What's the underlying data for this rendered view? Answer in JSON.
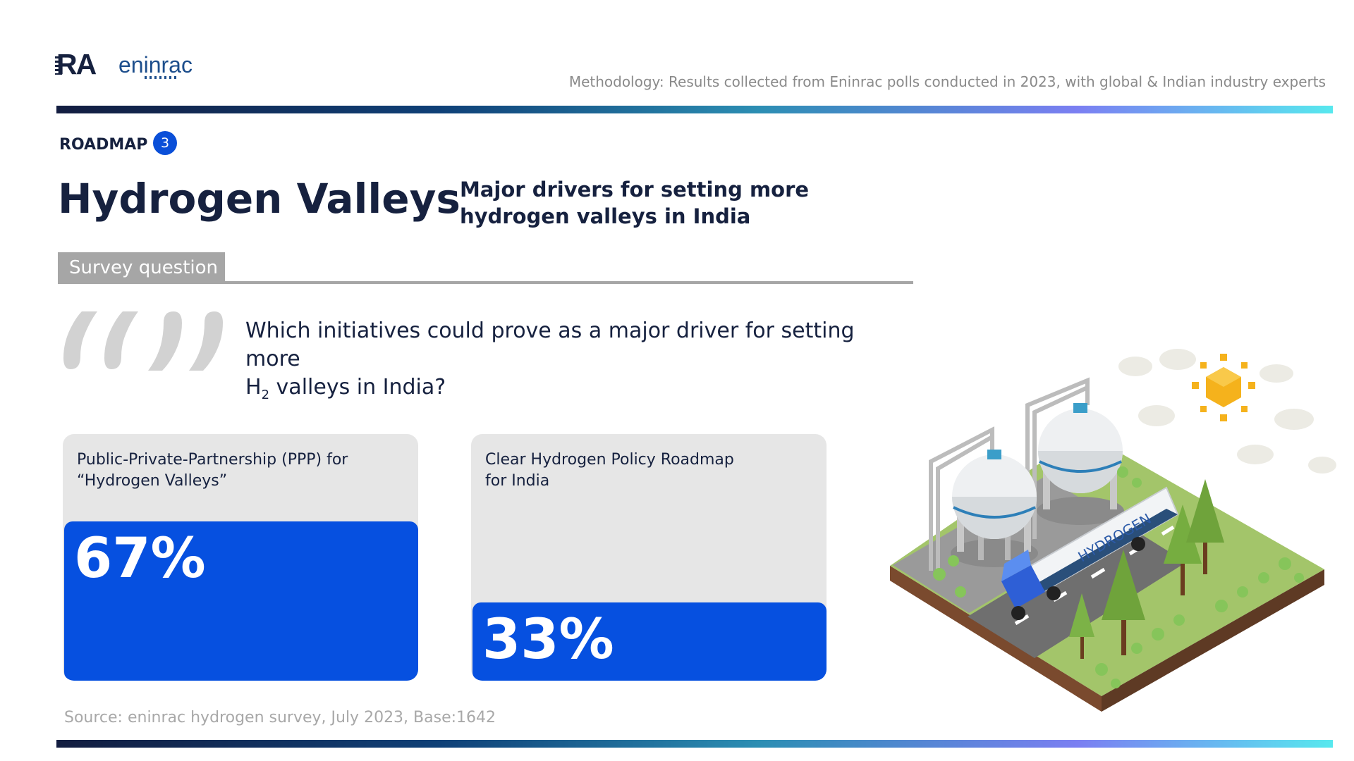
{
  "header": {
    "logo_text_ra": "RA",
    "logo_text_brand": "eninrac",
    "methodology": "Methodology: Results collected from Eninrac polls conducted in 2023, with global & Indian industry experts"
  },
  "section": {
    "label": "ROADMAP",
    "number": "3"
  },
  "title": "Hydrogen Valleys",
  "subtitle": "Major drivers for setting more hydrogen valleys in India",
  "survey_tab": "Survey question",
  "question_line1": "Which initiatives could prove as a major driver for setting more",
  "question_h": "H",
  "question_sub": "2",
  "question_rest": " valleys in India?",
  "illustration": {
    "tanker_text": "HYDROGEN"
  },
  "source": "Source: eninrac hydrogen survey, July 2023, Base:1642",
  "colors": {
    "accent": "#0650e0",
    "card_bg": "#e6e6e6",
    "navy": "#16213f",
    "gray": "#a6a6a6"
  },
  "chart_data": {
    "type": "bar",
    "title": "Major drivers for setting more hydrogen valleys in India",
    "categories": [
      "Public-Private-Partnership (PPP) for “Hydrogen Valleys”",
      "Clear Hydrogen Policy Roadmap for India"
    ],
    "category_lines": [
      [
        "Public-Private-Partnership (PPP) for",
        "“Hydrogen Valleys”"
      ],
      [
        "Clear Hydrogen Policy Roadmap",
        "for India"
      ]
    ],
    "values": [
      67,
      33
    ],
    "value_labels": [
      "67%",
      "33%"
    ],
    "unit": "%",
    "ylim": [
      0,
      100
    ],
    "grid": false
  }
}
